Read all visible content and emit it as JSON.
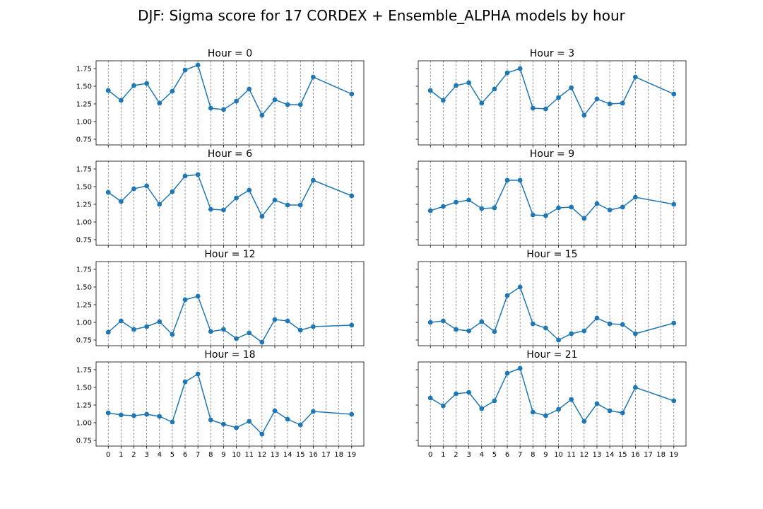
{
  "figure_title": "DJF: Sigma score for 17 CORDEX + Ensemble_ALPHA models by hour",
  "chart_data": [
    {
      "type": "line",
      "title": "Hour = 0",
      "x": [
        0,
        1,
        2,
        3,
        4,
        5,
        6,
        7,
        8,
        9,
        10,
        11,
        12,
        13,
        14,
        15,
        16,
        19
      ],
      "y": [
        1.44,
        1.3,
        1.51,
        1.54,
        1.26,
        1.43,
        1.73,
        1.8,
        1.19,
        1.17,
        1.29,
        1.46,
        1.09,
        1.31,
        1.24,
        1.24,
        1.63,
        1.39
      ],
      "xticks": [
        0,
        1,
        2,
        3,
        4,
        5,
        6,
        7,
        8,
        9,
        10,
        11,
        12,
        13,
        14,
        15,
        16,
        17,
        18,
        19
      ],
      "yticks": [
        0.75,
        1.0,
        1.25,
        1.5,
        1.75
      ],
      "ytick_labels": [
        "0.75",
        "1.00",
        "1.25",
        "1.50",
        "1.75"
      ],
      "xlim": [
        -0.95,
        19.95
      ],
      "ylim": [
        0.67,
        1.86
      ],
      "grid": "x-dashed"
    },
    {
      "type": "line",
      "title": "Hour = 3",
      "x": [
        0,
        1,
        2,
        3,
        4,
        5,
        6,
        7,
        8,
        9,
        10,
        11,
        12,
        13,
        14,
        15,
        16,
        19
      ],
      "y": [
        1.44,
        1.3,
        1.51,
        1.55,
        1.26,
        1.46,
        1.69,
        1.75,
        1.19,
        1.18,
        1.34,
        1.48,
        1.09,
        1.32,
        1.25,
        1.26,
        1.63,
        1.39
      ],
      "xticks": [
        0,
        1,
        2,
        3,
        4,
        5,
        6,
        7,
        8,
        9,
        10,
        11,
        12,
        13,
        14,
        15,
        16,
        17,
        18,
        19
      ],
      "yticks": [
        0.75,
        1.0,
        1.25,
        1.5,
        1.75
      ],
      "xlim": [
        -0.95,
        19.95
      ],
      "ylim": [
        0.67,
        1.86
      ],
      "grid": "x-dashed"
    },
    {
      "type": "line",
      "title": "Hour = 6",
      "x": [
        0,
        1,
        2,
        3,
        4,
        5,
        6,
        7,
        8,
        9,
        10,
        11,
        12,
        13,
        14,
        15,
        16,
        19
      ],
      "y": [
        1.42,
        1.29,
        1.47,
        1.51,
        1.25,
        1.43,
        1.65,
        1.67,
        1.18,
        1.17,
        1.34,
        1.45,
        1.08,
        1.31,
        1.24,
        1.24,
        1.59,
        1.37
      ],
      "xticks": [
        0,
        1,
        2,
        3,
        4,
        5,
        6,
        7,
        8,
        9,
        10,
        11,
        12,
        13,
        14,
        15,
        16,
        17,
        18,
        19
      ],
      "yticks": [
        0.75,
        1.0,
        1.25,
        1.5,
        1.75
      ],
      "ytick_labels": [
        "0.75",
        "1.00",
        "1.25",
        "1.50",
        "1.75"
      ],
      "xlim": [
        -0.95,
        19.95
      ],
      "ylim": [
        0.67,
        1.86
      ],
      "grid": "x-dashed"
    },
    {
      "type": "line",
      "title": "Hour = 9",
      "x": [
        0,
        1,
        2,
        3,
        4,
        5,
        6,
        7,
        8,
        9,
        10,
        11,
        12,
        13,
        14,
        15,
        16,
        19
      ],
      "y": [
        1.16,
        1.22,
        1.28,
        1.31,
        1.19,
        1.2,
        1.59,
        1.59,
        1.1,
        1.09,
        1.2,
        1.21,
        1.05,
        1.26,
        1.17,
        1.21,
        1.35,
        1.25
      ],
      "xticks": [
        0,
        1,
        2,
        3,
        4,
        5,
        6,
        7,
        8,
        9,
        10,
        11,
        12,
        13,
        14,
        15,
        16,
        17,
        18,
        19
      ],
      "yticks": [
        0.75,
        1.0,
        1.25,
        1.5,
        1.75
      ],
      "xlim": [
        -0.95,
        19.95
      ],
      "ylim": [
        0.67,
        1.86
      ],
      "grid": "x-dashed"
    },
    {
      "type": "line",
      "title": "Hour = 12",
      "x": [
        0,
        1,
        2,
        3,
        4,
        5,
        6,
        7,
        8,
        9,
        10,
        11,
        12,
        13,
        14,
        15,
        16,
        19
      ],
      "y": [
        0.86,
        1.02,
        0.9,
        0.94,
        1.01,
        0.83,
        1.32,
        1.37,
        0.87,
        0.9,
        0.77,
        0.85,
        0.72,
        1.04,
        1.02,
        0.89,
        0.94,
        0.96
      ],
      "xticks": [
        0,
        1,
        2,
        3,
        4,
        5,
        6,
        7,
        8,
        9,
        10,
        11,
        12,
        13,
        14,
        15,
        16,
        17,
        18,
        19
      ],
      "yticks": [
        0.75,
        1.0,
        1.25,
        1.5,
        1.75
      ],
      "ytick_labels": [
        "0.75",
        "1.00",
        "1.25",
        "1.50",
        "1.75"
      ],
      "xlim": [
        -0.95,
        19.95
      ],
      "ylim": [
        0.67,
        1.86
      ],
      "grid": "x-dashed"
    },
    {
      "type": "line",
      "title": "Hour = 15",
      "x": [
        0,
        1,
        2,
        3,
        4,
        5,
        6,
        7,
        8,
        9,
        10,
        11,
        12,
        13,
        14,
        15,
        16,
        19
      ],
      "y": [
        1.0,
        1.02,
        0.9,
        0.88,
        1.01,
        0.87,
        1.38,
        1.5,
        0.98,
        0.92,
        0.75,
        0.84,
        0.88,
        1.06,
        0.98,
        0.97,
        0.84,
        0.99
      ],
      "xticks": [
        0,
        1,
        2,
        3,
        4,
        5,
        6,
        7,
        8,
        9,
        10,
        11,
        12,
        13,
        14,
        15,
        16,
        17,
        18,
        19
      ],
      "yticks": [
        0.75,
        1.0,
        1.25,
        1.5,
        1.75
      ],
      "xlim": [
        -0.95,
        19.95
      ],
      "ylim": [
        0.67,
        1.86
      ],
      "grid": "x-dashed"
    },
    {
      "type": "line",
      "title": "Hour = 18",
      "x": [
        0,
        1,
        2,
        3,
        4,
        5,
        6,
        7,
        8,
        9,
        10,
        11,
        12,
        13,
        14,
        15,
        16,
        19
      ],
      "y": [
        1.14,
        1.11,
        1.1,
        1.12,
        1.09,
        1.01,
        1.58,
        1.69,
        1.04,
        0.98,
        0.93,
        1.02,
        0.84,
        1.17,
        1.05,
        0.97,
        1.16,
        1.12
      ],
      "xticks": [
        0,
        1,
        2,
        3,
        4,
        5,
        6,
        7,
        8,
        9,
        10,
        11,
        12,
        13,
        14,
        15,
        16,
        17,
        18,
        19
      ],
      "xtick_labels": [
        "0",
        "1",
        "2",
        "3",
        "4",
        "5",
        "6",
        "7",
        "8",
        "9",
        "10",
        "11",
        "12",
        "13",
        "14",
        "15",
        "16",
        "17",
        "18",
        "19"
      ],
      "yticks": [
        0.75,
        1.0,
        1.25,
        1.5,
        1.75
      ],
      "ytick_labels": [
        "0.75",
        "1.00",
        "1.25",
        "1.50",
        "1.75"
      ],
      "xlim": [
        -0.95,
        19.95
      ],
      "ylim": [
        0.67,
        1.86
      ],
      "grid": "x-dashed"
    },
    {
      "type": "line",
      "title": "Hour = 21",
      "x": [
        0,
        1,
        2,
        3,
        4,
        5,
        6,
        7,
        8,
        9,
        10,
        11,
        12,
        13,
        14,
        15,
        16,
        19
      ],
      "y": [
        1.35,
        1.24,
        1.41,
        1.43,
        1.2,
        1.31,
        1.7,
        1.77,
        1.15,
        1.1,
        1.19,
        1.33,
        1.02,
        1.27,
        1.17,
        1.14,
        1.5,
        1.31
      ],
      "xticks": [
        0,
        1,
        2,
        3,
        4,
        5,
        6,
        7,
        8,
        9,
        10,
        11,
        12,
        13,
        14,
        15,
        16,
        17,
        18,
        19
      ],
      "xtick_labels": [
        "0",
        "1",
        "2",
        "3",
        "4",
        "5",
        "6",
        "7",
        "8",
        "9",
        "10",
        "11",
        "12",
        "13",
        "14",
        "15",
        "16",
        "17",
        "18",
        "19"
      ],
      "yticks": [
        0.75,
        1.0,
        1.25,
        1.5,
        1.75
      ],
      "xlim": [
        -0.95,
        19.95
      ],
      "ylim": [
        0.67,
        1.86
      ],
      "grid": "x-dashed"
    }
  ],
  "colors": {
    "series": "#1f77b4",
    "grid": "#808080",
    "axes": "#000000"
  }
}
